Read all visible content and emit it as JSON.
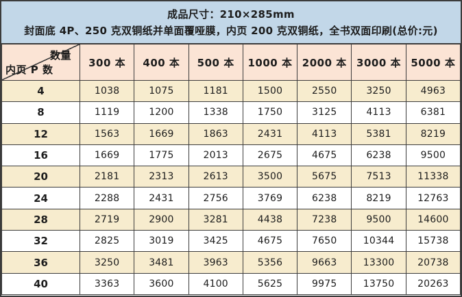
{
  "chart_data": {
    "type": "table",
    "title": "成品尺寸：210×285mm",
    "subtitle": "封面底 4P、250 克双铜纸并单面覆哑膜，内页 200 克双铜纸，全书双面印刷(总价:元)",
    "column_header": "数量",
    "row_header": "内页 P 数",
    "columns": [
      "300 本",
      "400 本",
      "500 本",
      "1000 本",
      "2000 本",
      "3000 本",
      "5000 本"
    ],
    "rows": [
      {
        "label": "4",
        "values": [
          1038,
          1075,
          1181,
          1500,
          2550,
          3250,
          4963
        ]
      },
      {
        "label": "8",
        "values": [
          1119,
          1200,
          1338,
          1750,
          3125,
          4113,
          6381
        ]
      },
      {
        "label": "12",
        "values": [
          1563,
          1669,
          1863,
          2431,
          4113,
          5381,
          8219
        ]
      },
      {
        "label": "16",
        "values": [
          1669,
          1775,
          2013,
          2675,
          4675,
          6238,
          9500
        ]
      },
      {
        "label": "20",
        "values": [
          2181,
          2313,
          2613,
          3500,
          5675,
          7513,
          11338
        ]
      },
      {
        "label": "24",
        "values": [
          2288,
          2431,
          2756,
          3769,
          6238,
          8219,
          12763
        ]
      },
      {
        "label": "28",
        "values": [
          2719,
          2900,
          3281,
          4438,
          7238,
          9500,
          14600
        ]
      },
      {
        "label": "32",
        "values": [
          2825,
          3019,
          3425,
          4675,
          7650,
          10344,
          15738
        ]
      },
      {
        "label": "36",
        "values": [
          3250,
          3481,
          3963,
          5356,
          9663,
          13300,
          20738
        ]
      },
      {
        "label": "40",
        "values": [
          3363,
          3600,
          4100,
          5625,
          9975,
          13750,
          20263
        ]
      }
    ]
  },
  "colors": {
    "top_header_bg": "#c2d7e8",
    "column_header_bg": "#fbe4d5",
    "row_alt_bg": "#f7ecce",
    "row_bg": "#ffffff",
    "border": "#3b3b3b",
    "text": "#1c1c1c"
  }
}
